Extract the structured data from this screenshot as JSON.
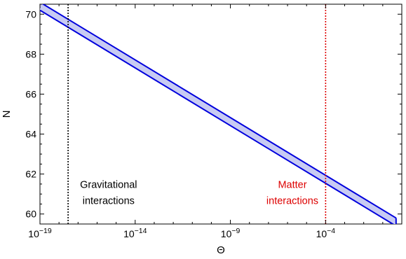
{
  "chart_data": {
    "type": "area",
    "xlabel": "Θ",
    "ylabel": "N",
    "x_scale": "log",
    "xlim": [
      1e-19,
      1
    ],
    "ylim": [
      59.5,
      70.5
    ],
    "x_ticks": [
      {
        "value": 1e-19,
        "base": "10",
        "exp": "−19"
      },
      {
        "value": 1e-14,
        "base": "10",
        "exp": "−14"
      },
      {
        "value": 1e-09,
        "base": "10",
        "exp": "−9"
      },
      {
        "value": 0.0001,
        "base": "10",
        "exp": "−4"
      }
    ],
    "y_ticks": [
      60,
      62,
      64,
      66,
      68,
      70
    ],
    "band": {
      "x": [
        1e-19,
        0.5
      ],
      "upper": [
        70.6,
        59.8
      ],
      "lower": [
        70.2,
        59.4
      ],
      "line_color": "#0000dd",
      "fill_color": "#c8cbf3"
    },
    "vlines": [
      {
        "x": 3e-18,
        "color": "#000000",
        "style": "dotted"
      },
      {
        "x": 0.0001,
        "color": "#dd0000",
        "style": "dotted"
      }
    ],
    "annotations": [
      {
        "lines": [
          "Gravitational",
          "interactions"
        ],
        "color": "#000000",
        "x": 4e-16,
        "y": [
          61.3,
          60.5
        ]
      },
      {
        "lines": [
          "Matter",
          "interactions"
        ],
        "color": "#dd0000",
        "x": 1.8e-06,
        "y": [
          61.3,
          60.5
        ]
      }
    ]
  }
}
